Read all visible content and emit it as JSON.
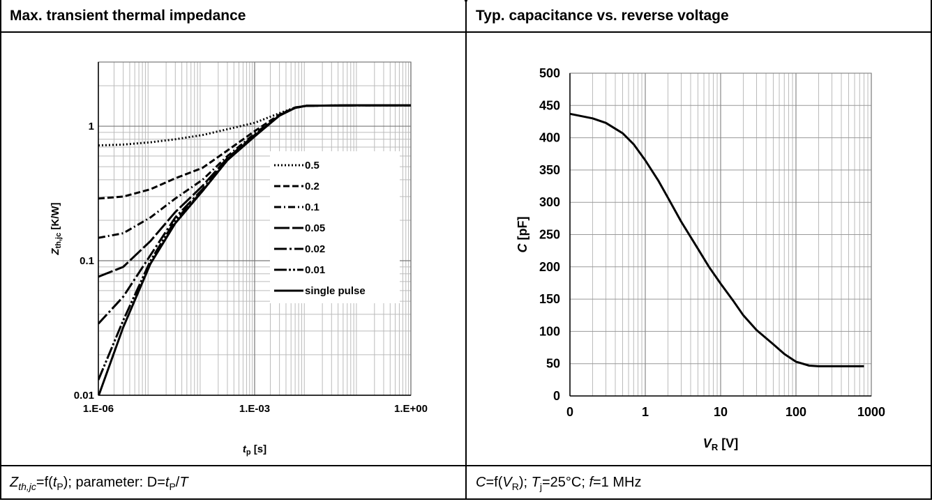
{
  "panels": {
    "left": {
      "header": "Max. transient thermal impedance",
      "footer": {
        "a": "Z",
        "b": "th,jc",
        "c": "=f(",
        "d": "t",
        "e": "P",
        "f": "); parameter: D=",
        "g": "t",
        "h": "P",
        "i": "/",
        "j": "T"
      }
    },
    "right": {
      "header": "Typ. capacitance vs. reverse voltage",
      "footer": {
        "a": "C",
        "b": "=f(",
        "c": "V",
        "d": "R",
        "e": "); ",
        "f": "T",
        "g": "j",
        "h": "=25°C; ",
        "i": "f",
        "j": "=1 MHz"
      }
    }
  },
  "chart_data": [
    {
      "type": "line",
      "title": "Max. transient thermal impedance",
      "xlabel": "t",
      "xlabel_sub": "p",
      "xlabel_unit": " [s]",
      "ylabel": "Z",
      "ylabel_sub": "th,jc",
      "ylabel_unit": " [K/W]",
      "xscale": "log",
      "yscale": "log",
      "xlim": [
        1e-06,
        1
      ],
      "ylim": [
        0.01,
        3
      ],
      "xticks": [
        1e-06,
        0.001,
        1
      ],
      "xtick_labels": [
        "1.E-06",
        "1.E-03",
        "1.E+00"
      ],
      "yticks": [
        0.01,
        0.1,
        1
      ],
      "ytick_labels": [
        "0.01",
        "0.1",
        "1"
      ],
      "grid": true,
      "legend_position": "right-middle",
      "series": [
        {
          "name": "0.5",
          "dash": "dot",
          "x": [
            1e-06,
            3e-06,
            1e-05,
            3e-05,
            0.0001,
            0.0003,
            0.001,
            0.003,
            0.006,
            0.01,
            0.1,
            1
          ],
          "y": [
            0.72,
            0.73,
            0.76,
            0.8,
            0.86,
            0.95,
            1.06,
            1.25,
            1.38,
            1.42,
            1.43,
            1.43
          ]
        },
        {
          "name": "0.2",
          "dash": "dash",
          "x": [
            1e-06,
            3e-06,
            1e-05,
            3e-05,
            0.0001,
            0.0003,
            0.001,
            0.003,
            0.006,
            0.01,
            0.1,
            1
          ],
          "y": [
            0.29,
            0.3,
            0.34,
            0.41,
            0.49,
            0.66,
            0.92,
            1.22,
            1.38,
            1.42,
            1.43,
            1.43
          ]
        },
        {
          "name": "0.1",
          "dash": "dashdot",
          "x": [
            1e-06,
            3e-06,
            1e-05,
            3e-05,
            0.0001,
            0.0003,
            0.001,
            0.003,
            0.006,
            0.01,
            0.1,
            1
          ],
          "y": [
            0.148,
            0.16,
            0.21,
            0.29,
            0.4,
            0.6,
            0.88,
            1.21,
            1.37,
            1.42,
            1.43,
            1.43
          ]
        },
        {
          "name": "0.05",
          "dash": "longdash",
          "x": [
            1e-06,
            3e-06,
            1e-05,
            3e-05,
            0.0001,
            0.0003,
            0.001,
            0.003,
            0.006,
            0.01,
            0.1,
            1
          ],
          "y": [
            0.076,
            0.09,
            0.14,
            0.23,
            0.36,
            0.58,
            0.86,
            1.2,
            1.37,
            1.42,
            1.43,
            1.43
          ]
        },
        {
          "name": "0.02",
          "dash": "longdashdot",
          "x": [
            1e-06,
            3e-06,
            1e-05,
            3e-05,
            0.0001,
            0.0003,
            0.001,
            0.003,
            0.006,
            0.01,
            0.1,
            1
          ],
          "y": [
            0.034,
            0.054,
            0.11,
            0.21,
            0.34,
            0.57,
            0.85,
            1.2,
            1.37,
            1.42,
            1.43,
            1.43
          ]
        },
        {
          "name": "0.01",
          "dash": "longdashdotdot",
          "x": [
            1e-06,
            3e-06,
            1e-05,
            3e-05,
            0.0001,
            0.0003,
            0.001,
            0.003,
            0.006,
            0.01,
            0.1,
            1
          ],
          "y": [
            0.013,
            0.036,
            0.1,
            0.2,
            0.33,
            0.56,
            0.85,
            1.2,
            1.37,
            1.42,
            1.43,
            1.43
          ]
        },
        {
          "name": "single pulse",
          "dash": "solid",
          "x": [
            1e-06,
            3e-06,
            1e-05,
            3e-05,
            0.0001,
            0.0003,
            0.001,
            0.003,
            0.006,
            0.01,
            0.1,
            1
          ],
          "y": [
            0.0098,
            0.032,
            0.095,
            0.19,
            0.33,
            0.56,
            0.84,
            1.2,
            1.37,
            1.42,
            1.43,
            1.43
          ]
        }
      ]
    },
    {
      "type": "line",
      "title": "Typ. capacitance vs. reverse voltage",
      "xlabel": "V",
      "xlabel_sub": "R",
      "xlabel_unit": " [V]",
      "ylabel": "C [pF]",
      "xscale": "log",
      "xlim": [
        0.1,
        1000
      ],
      "xtick_labels": [
        "0",
        "1",
        "10",
        "100",
        "1000"
      ],
      "ylim": [
        0,
        500
      ],
      "yticks": [
        0,
        50,
        100,
        150,
        200,
        250,
        300,
        350,
        400,
        450,
        500
      ],
      "grid": true,
      "series": [
        {
          "x": [
            0.1,
            0.2,
            0.3,
            0.5,
            0.7,
            1,
            1.5,
            2,
            3,
            5,
            7,
            10,
            15,
            20,
            30,
            50,
            70,
            100,
            150,
            200,
            300,
            500,
            800
          ],
          "y": [
            437,
            430,
            423,
            407,
            390,
            365,
            333,
            307,
            270,
            228,
            200,
            174,
            146,
            125,
            102,
            80,
            65,
            53,
            47,
            46,
            46,
            46,
            46
          ]
        }
      ]
    }
  ]
}
